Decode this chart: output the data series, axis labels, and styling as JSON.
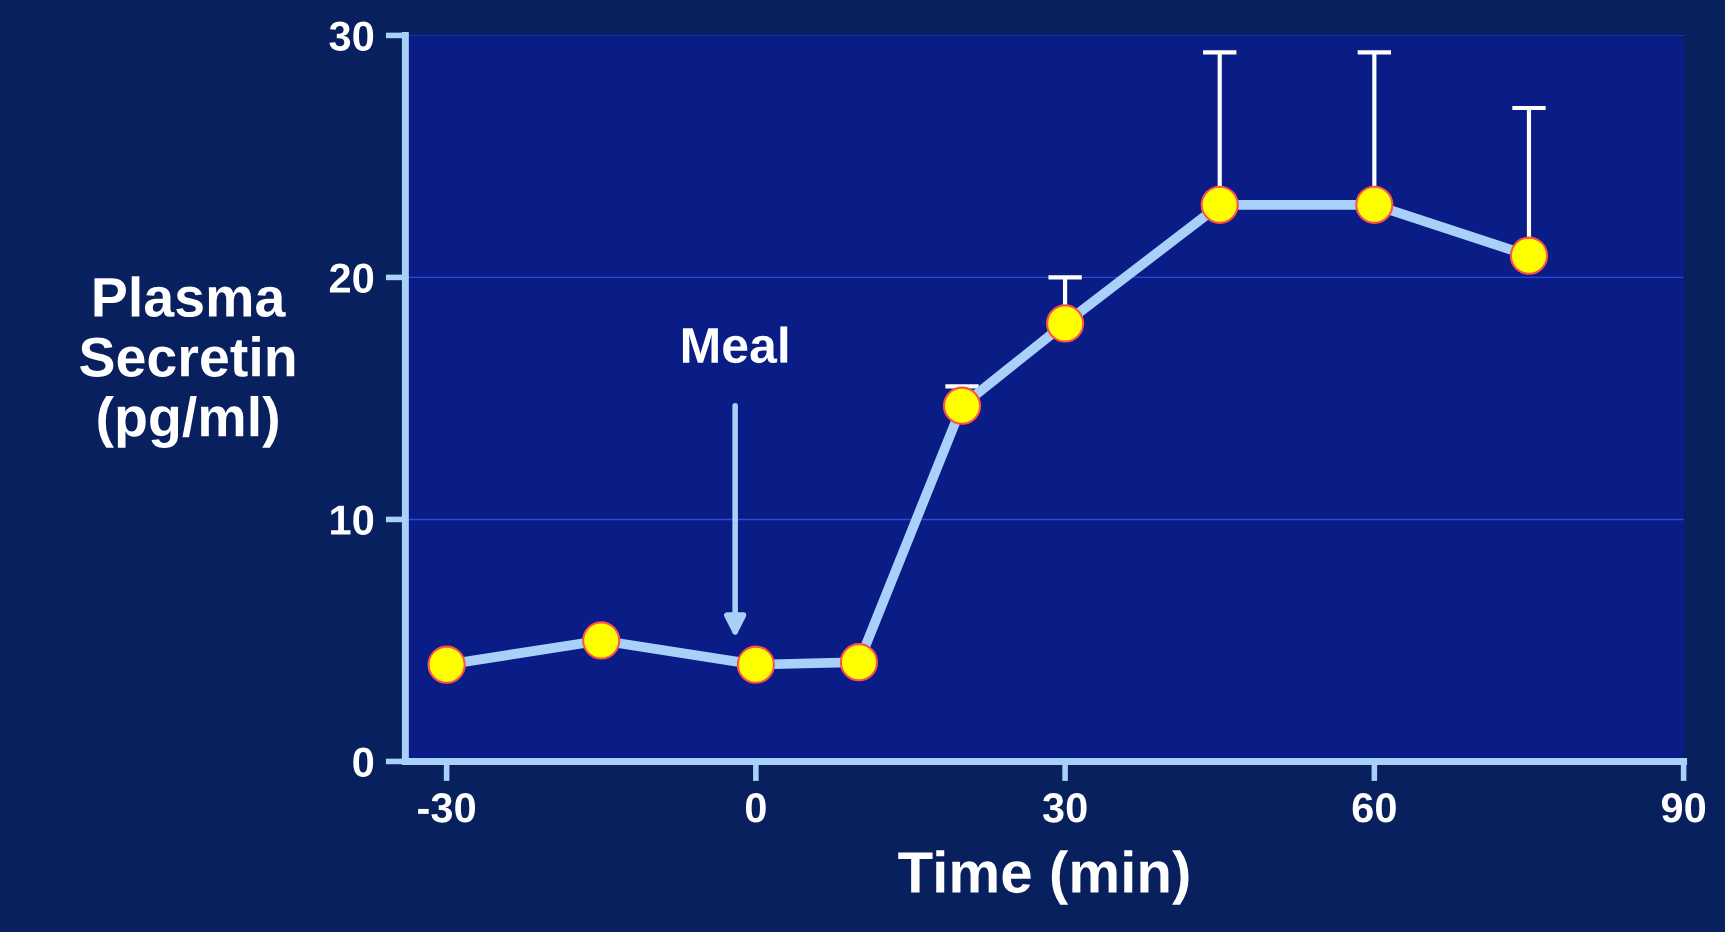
{
  "chart_data": {
    "type": "line",
    "xlabel": "Time (min)",
    "ylabel": "Plasma\nSecretin\n(pg/ml)",
    "x": [
      -30,
      -15,
      0,
      10,
      20,
      30,
      45,
      60,
      75
    ],
    "series": [
      {
        "color": "#a8d0f8",
        "values": [
          4,
          5,
          4,
          4.1,
          14.7,
          18.1,
          23,
          23,
          20.9
        ],
        "errors": [
          null,
          null,
          null,
          null,
          [
            14.7,
            15.5
          ],
          [
            18.1,
            20
          ],
          [
            23,
            29.3
          ],
          [
            23,
            29.3
          ],
          [
            20.9,
            27
          ]
        ]
      }
    ],
    "marker": "circle",
    "line_style": "solid",
    "xlim": [
      -34,
      90
    ],
    "xticks": [
      -30,
      0,
      30,
      60,
      90
    ],
    "ylim": [
      0,
      30
    ],
    "yticks": [
      0,
      10,
      20,
      30
    ],
    "grid": "y",
    "annotations": [
      "Meal"
    ]
  }
}
